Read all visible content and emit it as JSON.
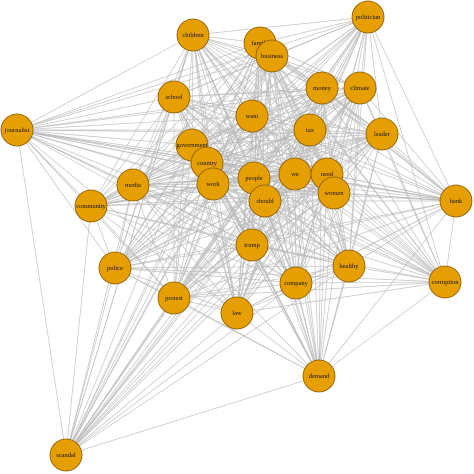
{
  "colors": {
    "node_fill": "#E69F00",
    "node_stroke": "#8a5a00",
    "edge": "#b8b8b8",
    "background": "#ffffff"
  },
  "nodes": [
    {
      "id": "children",
      "label": "children"
    },
    {
      "id": "family",
      "label": "family"
    },
    {
      "id": "business",
      "label": "business"
    },
    {
      "id": "politician",
      "label": "politician"
    },
    {
      "id": "money",
      "label": "money"
    },
    {
      "id": "climate",
      "label": "climate"
    },
    {
      "id": "school",
      "label": "school"
    },
    {
      "id": "want",
      "label": "want"
    },
    {
      "id": "journalist",
      "label": "journalist"
    },
    {
      "id": "tax",
      "label": "tax"
    },
    {
      "id": "leader",
      "label": "leader"
    },
    {
      "id": "government",
      "label": "government"
    },
    {
      "id": "country",
      "label": "country"
    },
    {
      "id": "media",
      "label": "media"
    },
    {
      "id": "work",
      "label": "work"
    },
    {
      "id": "people",
      "label": "people"
    },
    {
      "id": "we",
      "label": "we"
    },
    {
      "id": "need",
      "label": "need"
    },
    {
      "id": "women",
      "label": "women"
    },
    {
      "id": "should",
      "label": "should"
    },
    {
      "id": "community",
      "label": "community"
    },
    {
      "id": "bank",
      "label": "bank"
    },
    {
      "id": "trump",
      "label": "trump"
    },
    {
      "id": "healthy",
      "label": "healthy"
    },
    {
      "id": "police",
      "label": "police"
    },
    {
      "id": "company",
      "label": "company"
    },
    {
      "id": "corruption",
      "label": "corruption"
    },
    {
      "id": "protest",
      "label": "protest"
    },
    {
      "id": "law",
      "label": "law"
    },
    {
      "id": "demand",
      "label": "demand"
    },
    {
      "id": "scandal",
      "label": "scandal"
    }
  ]
}
